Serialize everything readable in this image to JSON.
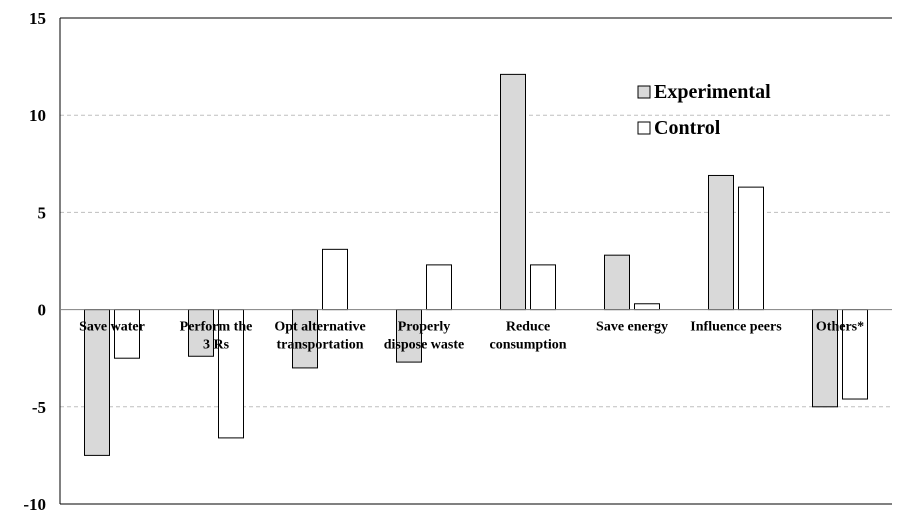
{
  "chart_data": {
    "type": "bar",
    "categories": [
      [
        "Save water"
      ],
      [
        "Perform the",
        "3 Rs"
      ],
      [
        "Opt alternative",
        "transportation"
      ],
      [
        "Properly",
        "dispose waste"
      ],
      [
        "Reduce",
        "consumption"
      ],
      [
        "Save energy"
      ],
      [
        "Influence peers"
      ],
      [
        "Others*"
      ]
    ],
    "series": [
      {
        "name": "Experimental",
        "color": "#d9d9d9",
        "values": [
          -7.5,
          -2.4,
          -3.0,
          -2.7,
          12.1,
          2.8,
          6.9,
          -5.0
        ]
      },
      {
        "name": "Control",
        "color": "#ffffff",
        "values": [
          -2.5,
          -6.6,
          3.1,
          2.3,
          2.3,
          0.3,
          6.3,
          -4.6
        ]
      }
    ],
    "ylim": [
      -10,
      15
    ],
    "yticks": [
      -10,
      -5,
      0,
      5,
      10,
      15
    ],
    "ytick_labels": [
      "-10",
      "-5",
      "0",
      "5",
      "10",
      "15"
    ],
    "grid": true,
    "legend_position": "top-right",
    "title": "",
    "xlabel": "",
    "ylabel": ""
  }
}
